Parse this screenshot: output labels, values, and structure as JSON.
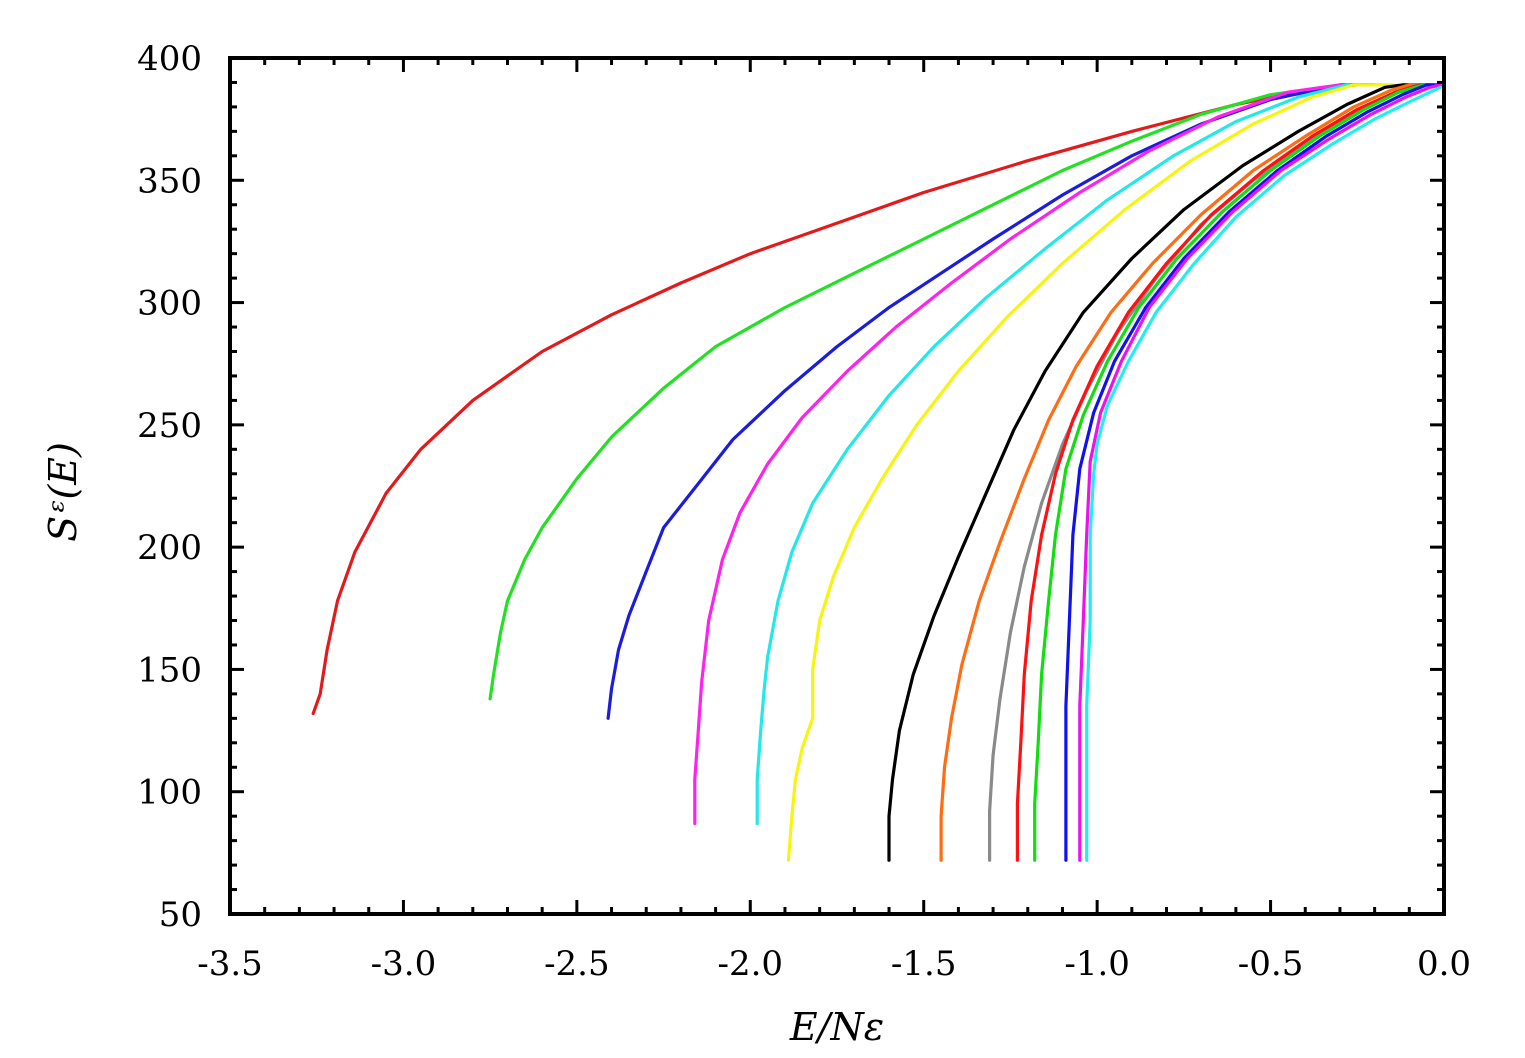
{
  "chart_data": {
    "type": "line",
    "title": "",
    "xlabel": "E/Nε",
    "ylabel": "Sᵋ(E)",
    "xlim": [
      -3.5,
      0.0
    ],
    "ylim": [
      50,
      400
    ],
    "xticks": [
      "-3.5",
      "-3.0",
      "-2.5",
      "-2.0",
      "-1.5",
      "-1.0",
      "-0.5",
      "0.0"
    ],
    "xtick_values": [
      -3.5,
      -3.0,
      -2.5,
      -2.0,
      -1.5,
      -1.0,
      -0.5,
      0.0
    ],
    "yticks": [
      "50",
      "100",
      "150",
      "200",
      "250",
      "300",
      "350",
      "400"
    ],
    "ytick_values": [
      50,
      100,
      150,
      200,
      250,
      300,
      350,
      400
    ],
    "grid": false,
    "legend": "none",
    "series": [
      {
        "color": "#e31a1c",
        "points": [
          [
            -3.26,
            132
          ],
          [
            -3.24,
            140
          ],
          [
            -3.22,
            158
          ],
          [
            -3.19,
            178
          ],
          [
            -3.14,
            198
          ],
          [
            -3.05,
            222
          ],
          [
            -2.95,
            240
          ],
          [
            -2.8,
            260
          ],
          [
            -2.6,
            280
          ],
          [
            -2.4,
            295
          ],
          [
            -2.2,
            308
          ],
          [
            -2.0,
            320
          ],
          [
            -1.8,
            330
          ],
          [
            -1.5,
            345
          ],
          [
            -1.2,
            358
          ],
          [
            -0.9,
            370
          ],
          [
            -0.6,
            381
          ],
          [
            -0.35,
            388
          ],
          [
            -0.25,
            389
          ]
        ]
      },
      {
        "color": "#22e022",
        "points": [
          [
            -2.75,
            138
          ],
          [
            -2.74,
            148
          ],
          [
            -2.72,
            165
          ],
          [
            -2.7,
            178
          ],
          [
            -2.65,
            195
          ],
          [
            -2.6,
            208
          ],
          [
            -2.5,
            228
          ],
          [
            -2.4,
            245
          ],
          [
            -2.25,
            265
          ],
          [
            -2.1,
            282
          ],
          [
            -1.9,
            298
          ],
          [
            -1.7,
            312
          ],
          [
            -1.5,
            326
          ],
          [
            -1.3,
            340
          ],
          [
            -1.1,
            354
          ],
          [
            -0.9,
            366
          ],
          [
            -0.7,
            377
          ],
          [
            -0.5,
            385
          ],
          [
            -0.3,
            389
          ],
          [
            -0.2,
            389
          ]
        ]
      },
      {
        "color": "#1c1cdc",
        "points": [
          [
            -2.41,
            130
          ],
          [
            -2.4,
            142
          ],
          [
            -2.38,
            158
          ],
          [
            -2.35,
            172
          ],
          [
            -2.3,
            190
          ],
          [
            -2.25,
            208
          ],
          [
            -2.15,
            226
          ],
          [
            -2.05,
            244
          ],
          [
            -1.9,
            264
          ],
          [
            -1.75,
            282
          ],
          [
            -1.6,
            298
          ],
          [
            -1.45,
            312
          ],
          [
            -1.3,
            326
          ],
          [
            -1.1,
            344
          ],
          [
            -0.9,
            360
          ],
          [
            -0.7,
            373
          ],
          [
            -0.5,
            383
          ],
          [
            -0.3,
            389
          ],
          [
            -0.2,
            389
          ]
        ]
      },
      {
        "color": "#ff22ee",
        "points": [
          [
            -2.16,
            87
          ],
          [
            -2.16,
            105
          ],
          [
            -2.15,
            125
          ],
          [
            -2.14,
            145
          ],
          [
            -2.12,
            170
          ],
          [
            -2.08,
            195
          ],
          [
            -2.03,
            214
          ],
          [
            -1.95,
            234
          ],
          [
            -1.85,
            253
          ],
          [
            -1.72,
            272
          ],
          [
            -1.58,
            290
          ],
          [
            -1.42,
            308
          ],
          [
            -1.25,
            326
          ],
          [
            -1.05,
            345
          ],
          [
            -0.85,
            362
          ],
          [
            -0.65,
            376
          ],
          [
            -0.45,
            386
          ],
          [
            -0.3,
            389
          ],
          [
            -0.2,
            389
          ]
        ]
      },
      {
        "color": "#22e8e8",
        "points": [
          [
            -1.98,
            87
          ],
          [
            -1.98,
            105
          ],
          [
            -1.97,
            125
          ],
          [
            -1.96,
            142
          ],
          [
            -1.95,
            155
          ],
          [
            -1.92,
            178
          ],
          [
            -1.88,
            198
          ],
          [
            -1.82,
            218
          ],
          [
            -1.72,
            240
          ],
          [
            -1.6,
            262
          ],
          [
            -1.47,
            282
          ],
          [
            -1.32,
            302
          ],
          [
            -1.15,
            322
          ],
          [
            -0.97,
            342
          ],
          [
            -0.78,
            360
          ],
          [
            -0.6,
            374
          ],
          [
            -0.42,
            384
          ],
          [
            -0.28,
            389
          ],
          [
            -0.18,
            389
          ]
        ]
      },
      {
        "color": "#f5f511",
        "points": [
          [
            -1.89,
            72
          ],
          [
            -1.88,
            90
          ],
          [
            -1.87,
            105
          ],
          [
            -1.85,
            118
          ],
          [
            -1.82,
            130
          ],
          [
            -1.82,
            150
          ],
          [
            -1.8,
            170
          ],
          [
            -1.76,
            188
          ],
          [
            -1.7,
            208
          ],
          [
            -1.62,
            228
          ],
          [
            -1.52,
            250
          ],
          [
            -1.4,
            272
          ],
          [
            -1.26,
            294
          ],
          [
            -1.1,
            316
          ],
          [
            -0.92,
            338
          ],
          [
            -0.73,
            358
          ],
          [
            -0.55,
            373
          ],
          [
            -0.38,
            384
          ],
          [
            -0.26,
            389
          ],
          [
            -0.15,
            389
          ]
        ]
      },
      {
        "color": "#000000",
        "points": [
          [
            -1.6,
            72
          ],
          [
            -1.6,
            90
          ],
          [
            -1.59,
            105
          ],
          [
            -1.57,
            125
          ],
          [
            -1.53,
            148
          ],
          [
            -1.47,
            172
          ],
          [
            -1.4,
            196
          ],
          [
            -1.32,
            222
          ],
          [
            -1.24,
            248
          ],
          [
            -1.15,
            272
          ],
          [
            -1.04,
            296
          ],
          [
            -0.9,
            318
          ],
          [
            -0.75,
            338
          ],
          [
            -0.58,
            356
          ],
          [
            -0.42,
            370
          ],
          [
            -0.28,
            381
          ],
          [
            -0.17,
            388
          ],
          [
            -0.12,
            389
          ],
          [
            -0.08,
            389
          ]
        ]
      },
      {
        "color": "#ff6c12",
        "points": [
          [
            -1.45,
            72
          ],
          [
            -1.45,
            90
          ],
          [
            -1.44,
            110
          ],
          [
            -1.42,
            130
          ],
          [
            -1.39,
            152
          ],
          [
            -1.34,
            178
          ],
          [
            -1.28,
            202
          ],
          [
            -1.21,
            228
          ],
          [
            -1.14,
            252
          ],
          [
            -1.06,
            274
          ],
          [
            -0.96,
            296
          ],
          [
            -0.84,
            316
          ],
          [
            -0.7,
            336
          ],
          [
            -0.55,
            354
          ],
          [
            -0.4,
            368
          ],
          [
            -0.26,
            380
          ],
          [
            -0.15,
            387
          ],
          [
            -0.1,
            389
          ],
          [
            -0.06,
            389
          ]
        ]
      },
      {
        "color": "#8a8a8a",
        "points": [
          [
            -1.31,
            72
          ],
          [
            -1.31,
            92
          ],
          [
            -1.3,
            115
          ],
          [
            -1.28,
            138
          ],
          [
            -1.25,
            165
          ],
          [
            -1.21,
            192
          ],
          [
            -1.16,
            218
          ],
          [
            -1.1,
            242
          ],
          [
            -1.03,
            264
          ],
          [
            -0.94,
            288
          ],
          [
            -0.83,
            310
          ],
          [
            -0.7,
            332
          ],
          [
            -0.55,
            350
          ],
          [
            -0.4,
            365
          ],
          [
            -0.26,
            377
          ],
          [
            -0.15,
            385
          ],
          [
            -0.08,
            389
          ],
          [
            -0.05,
            389
          ]
        ]
      },
      {
        "color": "#ff1111",
        "points": [
          [
            -1.23,
            72
          ],
          [
            -1.23,
            95
          ],
          [
            -1.22,
            120
          ],
          [
            -1.21,
            148
          ],
          [
            -1.19,
            178
          ],
          [
            -1.16,
            205
          ],
          [
            -1.12,
            230
          ],
          [
            -1.07,
            252
          ],
          [
            -1.0,
            274
          ],
          [
            -0.91,
            296
          ],
          [
            -0.8,
            316
          ],
          [
            -0.67,
            336
          ],
          [
            -0.52,
            354
          ],
          [
            -0.38,
            368
          ],
          [
            -0.25,
            379
          ],
          [
            -0.14,
            386
          ],
          [
            -0.07,
            389
          ],
          [
            -0.04,
            389
          ]
        ]
      },
      {
        "color": "#11dd11",
        "points": [
          [
            -1.18,
            72
          ],
          [
            -1.18,
            95
          ],
          [
            -1.17,
            120
          ],
          [
            -1.16,
            148
          ],
          [
            -1.14,
            178
          ],
          [
            -1.12,
            205
          ],
          [
            -1.09,
            232
          ],
          [
            -1.04,
            254
          ],
          [
            -0.97,
            276
          ],
          [
            -0.88,
            298
          ],
          [
            -0.77,
            318
          ],
          [
            -0.64,
            337
          ],
          [
            -0.5,
            354
          ],
          [
            -0.36,
            368
          ],
          [
            -0.23,
            379
          ],
          [
            -0.13,
            386
          ],
          [
            -0.06,
            389
          ],
          [
            -0.03,
            389
          ]
        ]
      },
      {
        "color": "#1111ee",
        "points": [
          [
            -1.09,
            72
          ],
          [
            -1.09,
            100
          ],
          [
            -1.09,
            135
          ],
          [
            -1.08,
            170
          ],
          [
            -1.07,
            205
          ],
          [
            -1.05,
            232
          ],
          [
            -1.01,
            255
          ],
          [
            -0.95,
            276
          ],
          [
            -0.86,
            298
          ],
          [
            -0.75,
            318
          ],
          [
            -0.62,
            337
          ],
          [
            -0.48,
            354
          ],
          [
            -0.34,
            368
          ],
          [
            -0.22,
            378
          ],
          [
            -0.12,
            385
          ],
          [
            -0.05,
            389
          ],
          [
            -0.02,
            389
          ]
        ]
      },
      {
        "color": "#ee11ee",
        "points": [
          [
            -1.05,
            72
          ],
          [
            -1.05,
            100
          ],
          [
            -1.05,
            135
          ],
          [
            -1.04,
            170
          ],
          [
            -1.03,
            205
          ],
          [
            -1.02,
            235
          ],
          [
            -0.99,
            255
          ],
          [
            -0.93,
            276
          ],
          [
            -0.85,
            298
          ],
          [
            -0.74,
            318
          ],
          [
            -0.61,
            337
          ],
          [
            -0.47,
            354
          ],
          [
            -0.33,
            367
          ],
          [
            -0.21,
            377
          ],
          [
            -0.11,
            384
          ],
          [
            -0.04,
            388
          ],
          [
            -0.01,
            389
          ]
        ]
      },
      {
        "color": "#22eeee",
        "points": [
          [
            -1.03,
            72
          ],
          [
            -1.03,
            100
          ],
          [
            -1.03,
            135
          ],
          [
            -1.02,
            170
          ],
          [
            -1.02,
            205
          ],
          [
            -1.01,
            230
          ],
          [
            -1.0,
            242
          ],
          [
            -0.97,
            258
          ],
          [
            -0.91,
            276
          ],
          [
            -0.83,
            296
          ],
          [
            -0.72,
            316
          ],
          [
            -0.6,
            335
          ],
          [
            -0.46,
            352
          ],
          [
            -0.32,
            365
          ],
          [
            -0.2,
            375
          ],
          [
            -0.1,
            382
          ],
          [
            -0.04,
            386
          ],
          [
            -0.01,
            388
          ]
        ]
      }
    ]
  }
}
